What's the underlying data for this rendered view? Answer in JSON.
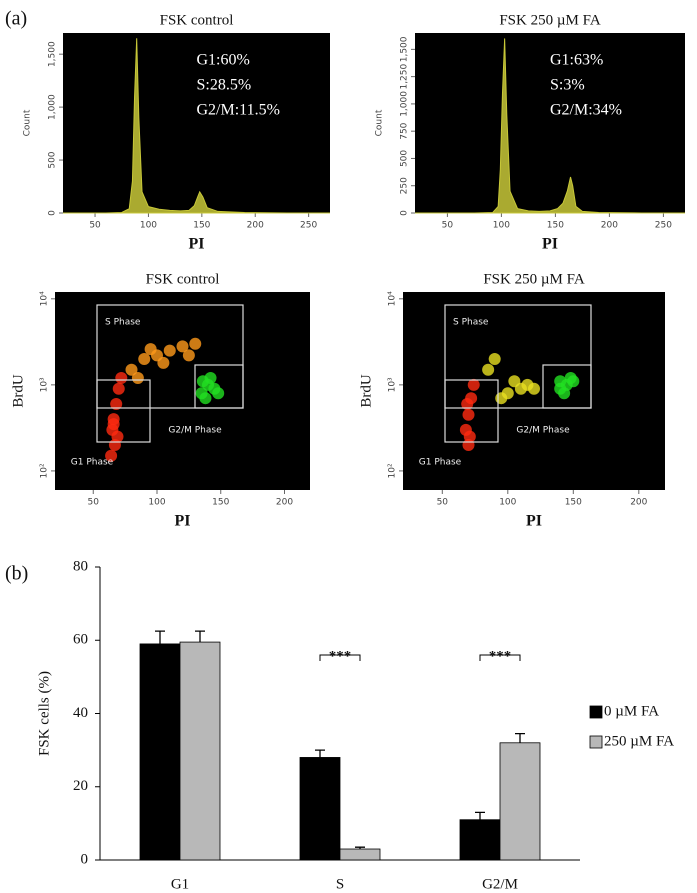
{
  "chart_data": [
    {
      "type": "area",
      "panel": "(a)",
      "title": "FSK control",
      "xlabel": "PI",
      "ylabel": "Count",
      "color": "#c8c838",
      "xlim": [
        20,
        270
      ],
      "xticks": [
        50,
        100,
        150,
        200,
        250
      ],
      "ylim": [
        0,
        1700
      ],
      "yticks": [
        0,
        500,
        {
          "value": 1000,
          "label": "1,000"
        },
        {
          "value": 1500,
          "label": "1,500"
        }
      ],
      "x": [
        20,
        60,
        75,
        82,
        85,
        87,
        89,
        91,
        94,
        100,
        110,
        120,
        130,
        138,
        143,
        146,
        148,
        151,
        155,
        165,
        190,
        230,
        270
      ],
      "values": [
        0,
        0,
        5,
        40,
        300,
        1100,
        1650,
        900,
        200,
        60,
        35,
        25,
        20,
        25,
        70,
        150,
        200,
        150,
        50,
        15,
        5,
        0,
        0
      ],
      "annotations": [
        "G1:60%",
        "S:28.5%",
        "G2/M:11.5%"
      ]
    },
    {
      "type": "area",
      "title": "FSK 250 µM FA",
      "xlabel": "PI",
      "ylabel": "Count",
      "color": "#c8c838",
      "xlim": [
        20,
        270
      ],
      "xticks": [
        50,
        100,
        150,
        200,
        250
      ],
      "ylim": [
        0,
        1650
      ],
      "yticks": [
        0,
        250,
        500,
        750,
        {
          "value": 1000,
          "label": "1,000"
        },
        {
          "value": 1250,
          "label": "1,250"
        },
        {
          "value": 1500,
          "label": "1,500"
        }
      ],
      "x": [
        20,
        75,
        92,
        97,
        99,
        101,
        103,
        105,
        108,
        115,
        125,
        135,
        145,
        152,
        157,
        161,
        164,
        166,
        169,
        175,
        190,
        230,
        270
      ],
      "values": [
        0,
        0,
        5,
        60,
        400,
        1100,
        1600,
        900,
        200,
        40,
        20,
        15,
        20,
        40,
        90,
        200,
        330,
        250,
        60,
        15,
        5,
        0,
        0
      ],
      "annotations": [
        "G1:63%",
        "S:3%",
        "G2/M:34%"
      ]
    },
    {
      "type": "scatter",
      "title": "FSK control",
      "xlabel": "PI",
      "ylabel": "BrdU",
      "ylog": true,
      "xlim": [
        20,
        220
      ],
      "xticks": [
        50,
        100,
        150,
        200
      ],
      "ylim": [
        60,
        12000
      ],
      "yticks": [
        {
          "value": 100,
          "label": "10²"
        },
        {
          "value": 1000,
          "label": "10³"
        },
        {
          "value": 10000,
          "label": "10⁴"
        }
      ],
      "gates": [
        "S Phase",
        "G1 Phase",
        "G2/M Phase"
      ],
      "series": [
        {
          "color": "#ff2a10",
          "x": [
            65,
            66,
            68,
            70,
            67,
            64,
            69,
            72,
            66
          ],
          "values": [
            300,
            400,
            600,
            900,
            200,
            150,
            250,
            1200,
            350
          ]
        },
        {
          "color": "#ff9a1a",
          "x": [
            80,
            90,
            100,
            110,
            120,
            130,
            85,
            105,
            125,
            95
          ],
          "values": [
            1500,
            2000,
            2200,
            2500,
            2800,
            3000,
            1200,
            1800,
            2200,
            2600
          ]
        },
        {
          "color": "#22e022",
          "x": [
            135,
            140,
            145,
            138,
            142,
            148,
            136
          ],
          "values": [
            800,
            1000,
            900,
            700,
            1200,
            800,
            1100
          ]
        }
      ]
    },
    {
      "type": "scatter",
      "title": "FSK 250 µM FA",
      "xlabel": "PI",
      "ylabel": "BrdU",
      "ylog": true,
      "xlim": [
        20,
        220
      ],
      "xticks": [
        50,
        100,
        150,
        200
      ],
      "ylim": [
        60,
        12000
      ],
      "yticks": [
        {
          "value": 100,
          "label": "10²"
        },
        {
          "value": 1000,
          "label": "10³"
        },
        {
          "value": 10000,
          "label": "10⁴"
        }
      ],
      "gates": [
        "S Phase",
        "G1 Phase",
        "G2/M Phase"
      ],
      "series": [
        {
          "color": "#ff2a10",
          "x": [
            68,
            70,
            72,
            70,
            74,
            69,
            71
          ],
          "values": [
            300,
            450,
            700,
            200,
            1000,
            600,
            250
          ]
        },
        {
          "color": "#e8e020",
          "x": [
            85,
            95,
            100,
            110,
            115,
            120,
            90,
            105
          ],
          "values": [
            1500,
            700,
            800,
            900,
            1000,
            900,
            2000,
            1100
          ]
        },
        {
          "color": "#22e022",
          "x": [
            140,
            145,
            150,
            143,
            148,
            140
          ],
          "values": [
            900,
            1000,
            1100,
            800,
            1200,
            1100
          ]
        }
      ]
    },
    {
      "type": "bar",
      "panel": "(b)",
      "ylabel": "FSK cells (%)",
      "categories": [
        "G1",
        "S",
        "G2/M"
      ],
      "ylim": [
        0,
        80
      ],
      "yticks": [
        0,
        20,
        40,
        60,
        80
      ],
      "series": [
        {
          "name": "0 µM FA",
          "color": "#000000",
          "values": [
            59,
            28,
            11
          ],
          "errors": [
            3.5,
            2,
            2
          ]
        },
        {
          "name": "250 µM FA",
          "color": "#b8b8b8",
          "values": [
            59.5,
            3,
            32
          ],
          "errors": [
            3,
            0.5,
            2.5
          ]
        }
      ],
      "annotations": [
        "***",
        "***"
      ]
    }
  ]
}
